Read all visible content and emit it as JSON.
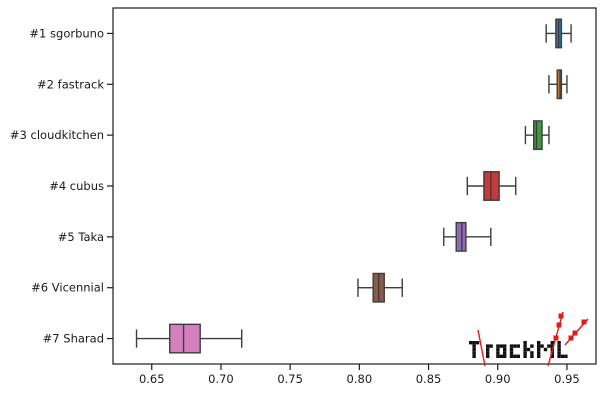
{
  "chart_data": {
    "type": "boxplot",
    "orientation": "horizontal",
    "title": "",
    "xlabel": "",
    "ylabel": "",
    "xlim": [
      0.622,
      0.971
    ],
    "xticks": [
      0.65,
      0.7,
      0.75,
      0.8,
      0.85,
      0.9,
      0.95
    ],
    "xtick_labels": [
      "0.65",
      "0.70",
      "0.75",
      "0.80",
      "0.85",
      "0.90",
      "0.95"
    ],
    "grid": false,
    "legend": "none",
    "categories": [
      "#1 sgorbuno",
      "#2 fastrack",
      "#3 cloudkitchen",
      "#4 cubus",
      "#5 Taka",
      "#6 Vicennial",
      "#7 Sharad"
    ],
    "boxes": [
      {
        "label": "#1 sgorbuno",
        "whisker_low": 0.935,
        "q1": 0.942,
        "median": 0.944,
        "q3": 0.946,
        "whisker_high": 0.953,
        "color": "#3a75a6"
      },
      {
        "label": "#2 fastrack",
        "whisker_low": 0.937,
        "q1": 0.943,
        "median": 0.945,
        "q3": 0.946,
        "whisker_high": 0.95,
        "color": "#c1803e"
      },
      {
        "label": "#3 cloudkitchen",
        "whisker_low": 0.92,
        "q1": 0.926,
        "median": 0.928,
        "q3": 0.932,
        "whisker_high": 0.937,
        "color": "#3f9a3f"
      },
      {
        "label": "#4 cubus",
        "whisker_low": 0.878,
        "q1": 0.89,
        "median": 0.895,
        "q3": 0.901,
        "whisker_high": 0.913,
        "color": "#c8393b"
      },
      {
        "label": "#5 Taka",
        "whisker_low": 0.861,
        "q1": 0.87,
        "median": 0.874,
        "q3": 0.877,
        "whisker_high": 0.895,
        "color": "#8e6bb4"
      },
      {
        "label": "#6 Vicennial",
        "whisker_low": 0.799,
        "q1": 0.81,
        "median": 0.814,
        "q3": 0.818,
        "whisker_high": 0.831,
        "color": "#8a5b4c"
      },
      {
        "label": "#7 Sharad",
        "whisker_low": 0.639,
        "q1": 0.663,
        "median": 0.673,
        "q3": 0.685,
        "whisker_high": 0.715,
        "color": "#d47fbe"
      }
    ],
    "watermark": {
      "text": "TrackML"
    }
  },
  "colors": {
    "axis": "#1a1a1a",
    "box_edge": "#3d3d3d",
    "logo_dark": "#111111",
    "logo_accent": "#e01b1b"
  }
}
